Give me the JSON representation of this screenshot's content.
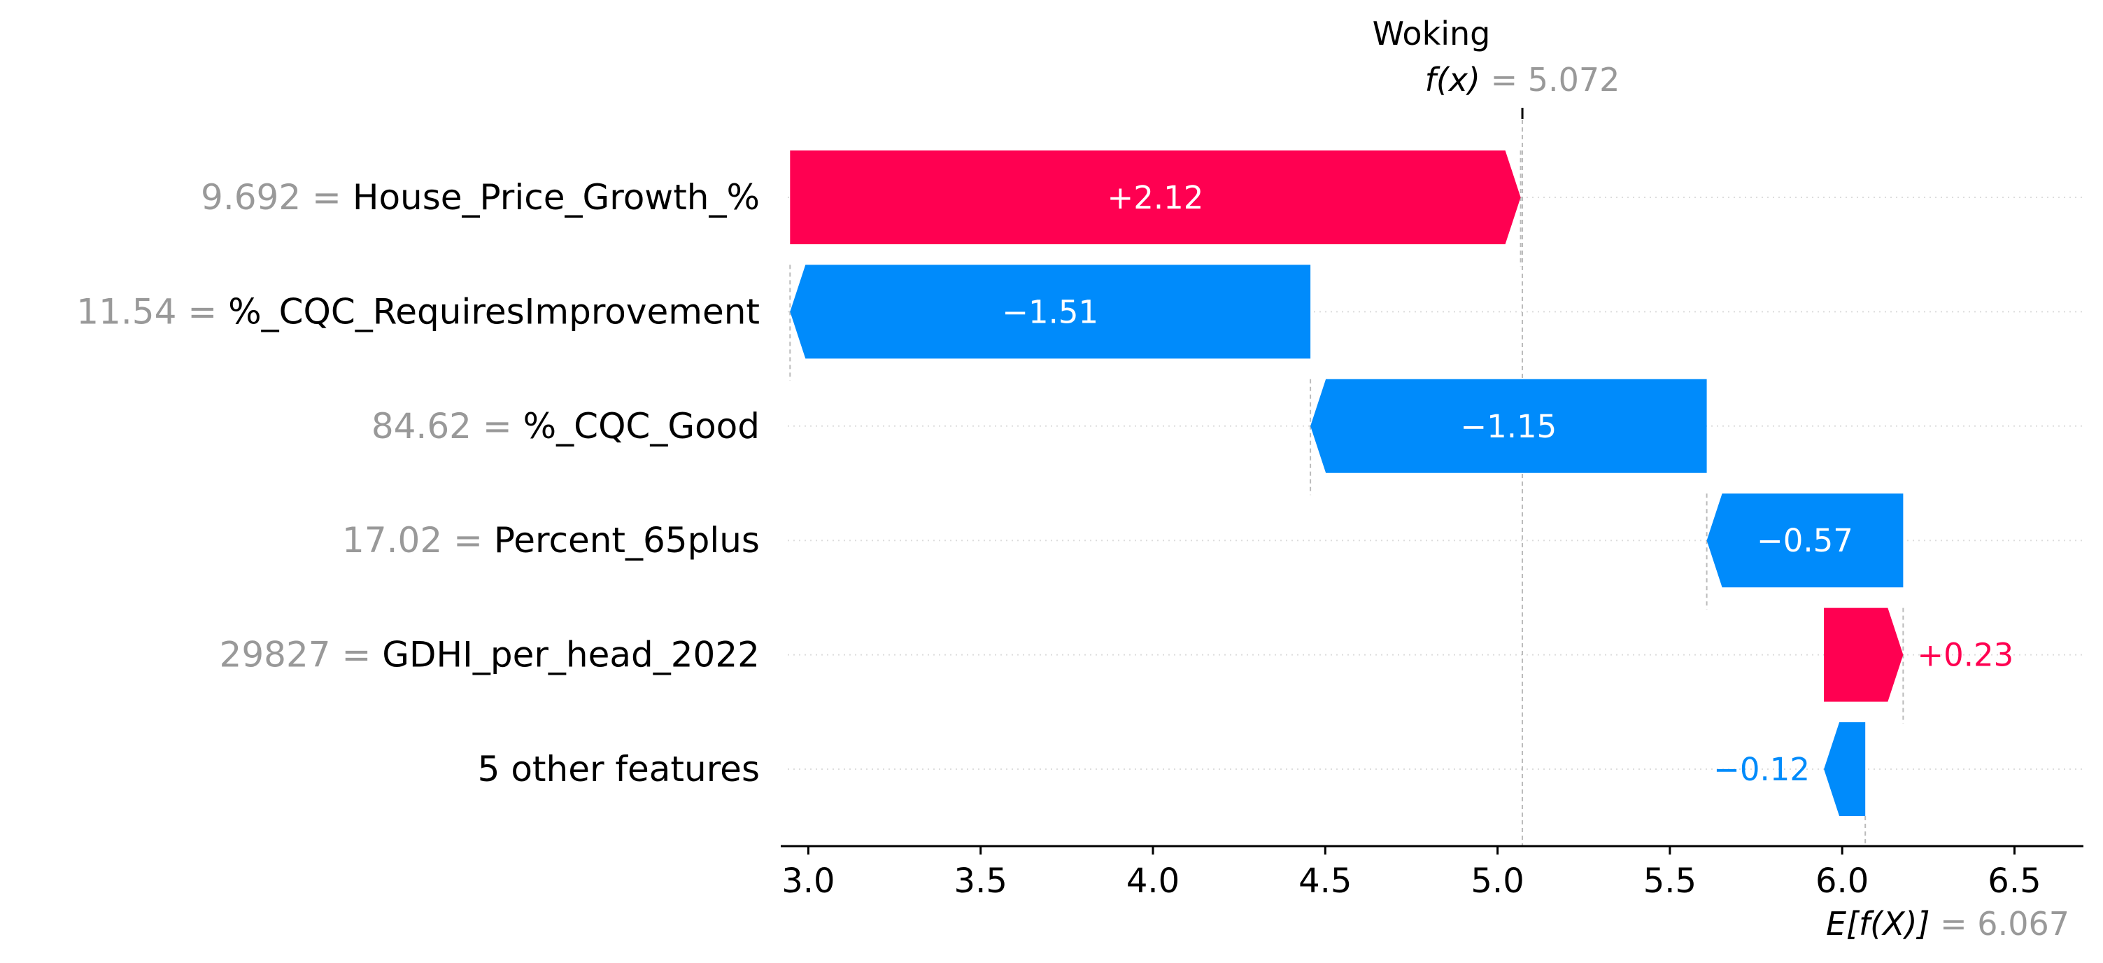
{
  "chart_data": {
    "type": "waterfall",
    "title": "Woking",
    "fx_label": "f(x)",
    "fx_value": "= 5.072",
    "fx": 5.072,
    "base_label": "E[f(X)]",
    "base_value": "= 6.067",
    "base": 6.067,
    "xlim": [
      2.92,
      6.7
    ],
    "xticks": [
      3.0,
      3.5,
      4.0,
      4.5,
      5.0,
      5.5,
      6.0,
      6.5
    ],
    "xtick_labels": [
      "3.0",
      "3.5",
      "4.0",
      "4.5",
      "5.0",
      "5.5",
      "6.0",
      "6.5"
    ],
    "features": [
      {
        "value": "9.692 =",
        "name": "House_Price_Growth_%",
        "contribution": 2.12,
        "label": "+2.12"
      },
      {
        "value": "11.54 =",
        "name": "%_CQC_RequiresImprovement",
        "contribution": -1.51,
        "label": "−1.51"
      },
      {
        "value": "84.62 =",
        "name": "%_CQC_Good",
        "contribution": -1.15,
        "label": "−1.15"
      },
      {
        "value": "17.02 =",
        "name": "Percent_65plus",
        "contribution": -0.57,
        "label": "−0.57"
      },
      {
        "value": "29827 =",
        "name": "GDHI_per_head_2022",
        "contribution": 0.23,
        "label": "+0.23"
      },
      {
        "value": "",
        "name": "5 other features",
        "contribution": -0.12,
        "label": "−0.12"
      }
    ],
    "colors": {
      "positive": "#ff0051",
      "negative": "#008bfb",
      "value_text": "#999999",
      "text": "#000000"
    }
  }
}
